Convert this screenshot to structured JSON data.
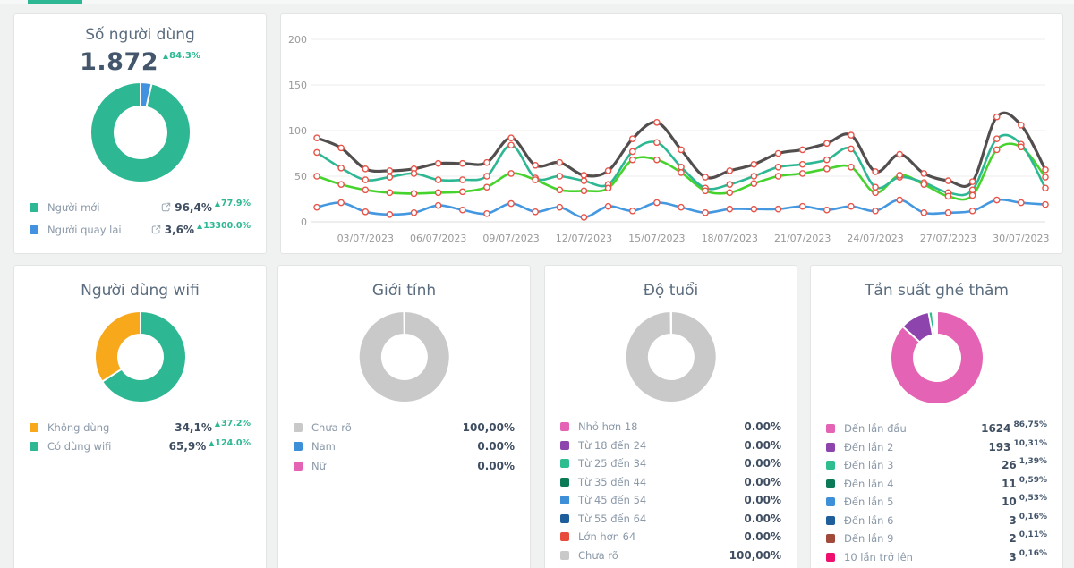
{
  "theme": {
    "accent_teal": "#2db893",
    "card_bg": "#ffffff",
    "page_bg": "#f0f1f1",
    "title_color": "#5a6c7e",
    "value_color": "#3f4e61",
    "label_color": "#8a98a8",
    "axis_label_color": "#999999"
  },
  "header": {
    "active_tab_indicator_color": "#2db893"
  },
  "cards": {
    "users": {
      "title": "Số người dùng",
      "total": "1.872",
      "total_change": "84.3%",
      "legend": [
        {
          "label": "Người mới",
          "color": "#2db893",
          "value": "96,4%",
          "change": "77.9%",
          "link_icon": true
        },
        {
          "label": "Người quay lại",
          "color": "#4292e0",
          "value": "3,6%",
          "change": "13300.0%",
          "link_icon": true
        }
      ]
    },
    "wifi": {
      "title": "Người dùng wifi",
      "legend": [
        {
          "label": "Không dùng",
          "color": "#f7a81b",
          "value": "34,1%",
          "change": "37.2%"
        },
        {
          "label": "Có dùng wifi",
          "color": "#2db893",
          "value": "65,9%",
          "change": "124.0%"
        }
      ]
    },
    "gender": {
      "title": "Giới tính",
      "legend": [
        {
          "label": "Chưa rõ",
          "color": "#c9c9c9",
          "value": "100,00%"
        },
        {
          "label": "Nam",
          "color": "#3d8fd8",
          "value": "0.00%"
        },
        {
          "label": "Nữ",
          "color": "#e563b4",
          "value": "0.00%"
        }
      ]
    },
    "age": {
      "title": "Độ tuổi",
      "legend": [
        {
          "label": "Nhỏ hơn 18",
          "color": "#e563b4",
          "value": "0.00%"
        },
        {
          "label": "Từ 18 đến 24",
          "color": "#8d44ad",
          "value": "0.00%"
        },
        {
          "label": "Từ 25 đến 34",
          "color": "#2dbd8f",
          "value": "0.00%"
        },
        {
          "label": "Từ 35 đến 44",
          "color": "#0c7a56",
          "value": "0.00%"
        },
        {
          "label": "Từ 45 đến 54",
          "color": "#3d8fd8",
          "value": "0.00%"
        },
        {
          "label": "Từ 55 đến 64",
          "color": "#1d5e9b",
          "value": "0.00%"
        },
        {
          "label": "Lớn hơn 64",
          "color": "#e74c3c",
          "value": "0.00%"
        },
        {
          "label": "Chưa rõ",
          "color": "#c9c9c9",
          "value": "100,00%"
        }
      ]
    },
    "frequency": {
      "title": "Tần suất ghé thăm",
      "legend": [
        {
          "label": "Đến lần đầu",
          "color": "#e563b4",
          "value": "1624",
          "sub": "86,75%"
        },
        {
          "label": "Đến lần 2",
          "color": "#8d44ad",
          "value": "193",
          "sub": "10,31%"
        },
        {
          "label": "Đến lần 3",
          "color": "#2dbd8f",
          "value": "26",
          "sub": "1,39%"
        },
        {
          "label": "Đến lần 4",
          "color": "#0c7a56",
          "value": "11",
          "sub": "0,59%"
        },
        {
          "label": "Đến lần 5",
          "color": "#3d8fd8",
          "value": "10",
          "sub": "0,53%"
        },
        {
          "label": "Đến lần 6",
          "color": "#1d5e9b",
          "value": "3",
          "sub": "0,16%"
        },
        {
          "label": "Đến lần 9",
          "color": "#a14a3c",
          "value": "2",
          "sub": "0,11%"
        },
        {
          "label": "10 lần trở lên",
          "color": "#ef0f6e",
          "value": "3",
          "sub": "0,16%"
        }
      ]
    }
  },
  "chart_data": [
    {
      "id": "users-donut",
      "type": "pie",
      "title": "Số người dùng",
      "slices": [
        {
          "label": "Người quay lại",
          "value": 3.6,
          "color": "#4292e0"
        },
        {
          "label": "Người mới",
          "value": 96.4,
          "color": "#2db893"
        }
      ]
    },
    {
      "id": "visits-line",
      "type": "line",
      "title": "",
      "n_points": 31,
      "x_tick_labels": [
        "03/07/2023",
        "06/07/2023",
        "09/07/2023",
        "12/07/2023",
        "15/07/2023",
        "18/07/2023",
        "21/07/2023",
        "24/07/2023",
        "27/07/2023",
        "30/07/2023"
      ],
      "x_tick_days": [
        3,
        6,
        9,
        12,
        15,
        18,
        21,
        24,
        27,
        30
      ],
      "ylim": [
        0,
        200
      ],
      "yticks": [
        0,
        50,
        100,
        150,
        200
      ],
      "grid": true,
      "legend_position": "none",
      "marker": {
        "fill": "#ffffff",
        "stroke": "#e85449"
      },
      "series": [
        {
          "name": "dark-gray",
          "color": "#524e4e",
          "width": 3.2,
          "values": [
            92,
            81,
            58,
            56,
            58,
            64,
            64,
            65,
            92,
            62,
            65,
            51,
            56,
            91,
            109,
            79,
            49,
            56,
            63,
            75,
            79,
            86,
            95,
            55,
            74,
            53,
            45,
            44,
            115,
            106,
            57
          ]
        },
        {
          "name": "teal",
          "color": "#2db893",
          "width": 2.6,
          "values": [
            76,
            59,
            46,
            49,
            53,
            46,
            46,
            50,
            84,
            48,
            50,
            45,
            41,
            77,
            87,
            60,
            37,
            41,
            50,
            60,
            63,
            68,
            80,
            38,
            49,
            43,
            32,
            35,
            91,
            85,
            37
          ]
        },
        {
          "name": "green",
          "color": "#47d32e",
          "width": 2.6,
          "values": [
            50,
            41,
            35,
            32,
            31,
            32,
            33,
            38,
            53,
            46,
            35,
            34,
            37,
            68,
            68,
            54,
            34,
            32,
            42,
            50,
            53,
            58,
            60,
            32,
            51,
            41,
            28,
            29,
            79,
            82,
            49
          ]
        },
        {
          "name": "blue",
          "color": "#4498e0",
          "width": 2.6,
          "values": [
            16,
            21,
            11,
            8,
            10,
            18,
            13,
            9,
            20,
            11,
            16,
            5,
            17,
            12,
            21,
            16,
            10,
            14,
            14,
            14,
            17,
            13,
            17,
            12,
            24,
            10,
            10,
            12,
            24,
            21,
            19
          ]
        }
      ]
    },
    {
      "id": "wifi-donut",
      "type": "pie",
      "title": "Người dùng wifi",
      "slices": [
        {
          "label": "Có dùng wifi",
          "value": 65.9,
          "color": "#2db893"
        },
        {
          "label": "Không dùng",
          "value": 34.1,
          "color": "#f7a81b"
        }
      ]
    },
    {
      "id": "gender-donut",
      "type": "pie",
      "title": "Giới tính",
      "slices": [
        {
          "label": "Chưa rõ",
          "value": 100,
          "color": "#c9c9c9"
        }
      ]
    },
    {
      "id": "age-donut",
      "type": "pie",
      "title": "Độ tuổi",
      "slices": [
        {
          "label": "Chưa rõ",
          "value": 100,
          "color": "#c9c9c9"
        }
      ]
    },
    {
      "id": "frequency-donut",
      "type": "pie",
      "title": "Tần suất ghé thăm",
      "slices": [
        {
          "label": "Đến lần đầu",
          "value": 86.75,
          "color": "#e563b4"
        },
        {
          "label": "Đến lần 2",
          "value": 10.31,
          "color": "#8d44ad"
        },
        {
          "label": "Đến lần 3",
          "value": 1.39,
          "color": "#2dbd8f"
        },
        {
          "label": "Đến lần 4",
          "value": 0.59,
          "color": "#0c7a56"
        },
        {
          "label": "Đến lần 5",
          "value": 0.53,
          "color": "#3d8fd8"
        },
        {
          "label": "Đến lần 6",
          "value": 0.16,
          "color": "#1d5e9b"
        },
        {
          "label": "Đến lần 9",
          "value": 0.11,
          "color": "#a14a3c"
        },
        {
          "label": "10 lần trở lên",
          "value": 0.16,
          "color": "#ef0f6e"
        }
      ]
    }
  ]
}
